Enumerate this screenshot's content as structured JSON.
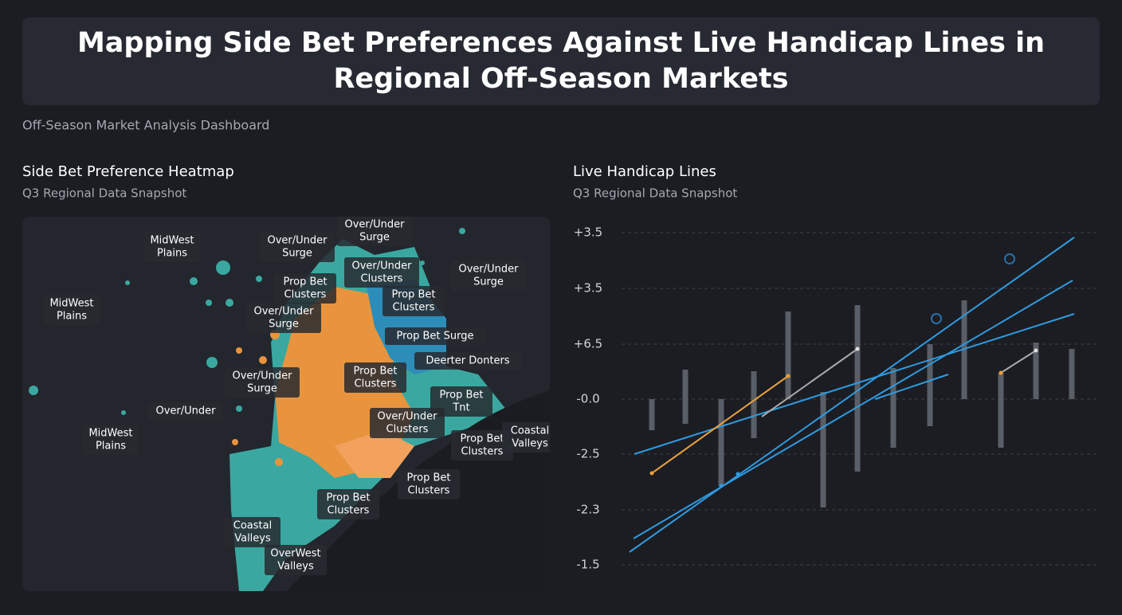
{
  "header": {
    "title": [
      "Mapping Side Bet Preferences Against Live Handicap Lines in",
      "Regional Off-Season Markets"
    ],
    "subtitle": "Off-Season Market Analysis Dashboard"
  },
  "map_panel": {
    "title": "Side Bet Preference Heatmap",
    "subtitle": "Q3 Regional Data Snapshot",
    "labels": [
      [
        "MidWest",
        "Plains"
      ],
      [
        "Over/Under",
        "Surge"
      ],
      [
        "Over/Under",
        "Surge"
      ],
      [
        "MidWest",
        "Plains"
      ],
      [
        "Prop Bet",
        "Clusters"
      ],
      [
        "Over/Under",
        "Clusters"
      ],
      [
        "Over/Under",
        "Surge"
      ],
      [
        "Prop Bet",
        "Clusters"
      ],
      [
        "Over/Under",
        "Surge"
      ],
      [
        "Prop Bet Surge"
      ],
      [
        "Deerter Donters"
      ],
      [
        "Prop Bet",
        "Clusters"
      ],
      [
        "Over/Under",
        "Surge"
      ],
      [
        "Prop Bet",
        "Tnt"
      ],
      [
        "Over/Under"
      ],
      [
        "Over/Under",
        "Clusters"
      ],
      [
        "MidWest",
        "Plains"
      ],
      [
        "Prop Bet",
        "Clusters"
      ],
      [
        "Coastal",
        "Valleys"
      ],
      [
        "Prop Bet",
        "Clusters"
      ],
      [
        "Prop Bet",
        "Clusters"
      ],
      [
        "Coastal",
        "Valleys"
      ],
      [
        "OverWest",
        "Valleys"
      ]
    ]
  },
  "lines_panel": {
    "title": "Live Handicap Lines",
    "subtitle": "Q3 Regional Data Snapshot",
    "axis_labels": [
      "+3.5",
      "+3.5",
      "+6.5",
      "-0.0",
      "-2.5",
      "-2.3",
      "-1.5"
    ]
  }
}
